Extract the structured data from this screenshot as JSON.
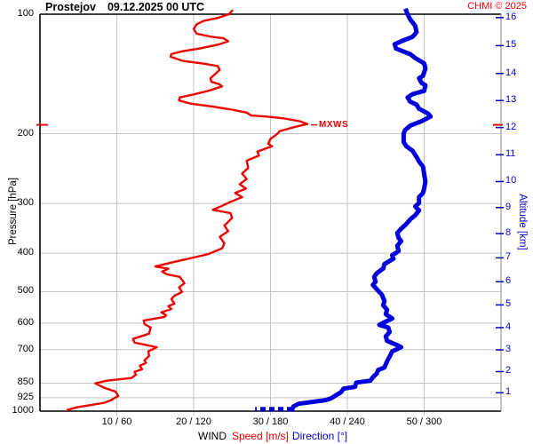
{
  "header": {
    "station": "Prostejov",
    "datetime": "09.12.2025 00 UTC",
    "copyright": "CHMI © 2025"
  },
  "colors": {
    "speed": "#ee0000",
    "direction": "#0000dd",
    "grid": "#c6c6c6",
    "axis": "#000000",
    "right_axis": "#999999",
    "blue_text": "#0000cc",
    "red_text": "#ff0000"
  },
  "chart_data": {
    "type": "line",
    "title": "Prostejov 09.12.2025 00 UTC",
    "ylabel": "Pressure [hPa]",
    "y2label": "Altitude [km]",
    "xlabel_word": "WIND",
    "xlabel_speed": "Speed [m/s]",
    "xlabel_direction": "Direction [°]",
    "y_axis": {
      "scale": "log",
      "range": [
        100,
        1000
      ],
      "ticks": [
        100,
        200,
        300,
        400,
        500,
        600,
        700,
        850,
        925,
        1000
      ]
    },
    "y2_axis": {
      "units": "km",
      "ticks": [
        [
          1,
          899
        ],
        [
          2,
          795
        ],
        [
          3,
          701
        ],
        [
          4,
          616
        ],
        [
          5,
          540
        ],
        [
          6,
          472
        ],
        [
          7,
          411
        ],
        [
          8,
          357
        ],
        [
          9,
          307
        ],
        [
          10,
          264
        ],
        [
          11,
          226
        ],
        [
          12,
          193
        ],
        [
          13,
          165
        ],
        [
          14,
          141
        ],
        [
          15,
          120
        ],
        [
          16,
          102
        ]
      ]
    },
    "x_axis": {
      "speed_range": [
        0,
        60
      ],
      "direction_range": [
        0,
        360
      ],
      "ticks": [
        {
          "label": "10 / 60",
          "speed": 10,
          "direction": 60
        },
        {
          "label": "20 / 120",
          "speed": 20,
          "direction": 120
        },
        {
          "label": "30 / 180",
          "speed": 30,
          "direction": 180
        },
        {
          "label": "40 / 240",
          "speed": 40,
          "direction": 240
        },
        {
          "label": "50 / 300",
          "speed": 50,
          "direction": 300
        }
      ]
    },
    "annotations": {
      "mxws": {
        "label": "MXWS",
        "pressure_hpa": 190,
        "speed_ms": 34.8
      }
    },
    "series": [
      {
        "name": "speed",
        "units": "m/s",
        "axis": "speed",
        "color": "#ee0000",
        "width": 2.4,
        "points": [
          [
            25.0,
            98
          ],
          [
            24.6,
            100
          ],
          [
            23.3,
            102
          ],
          [
            21.3,
            104
          ],
          [
            20.4,
            106
          ],
          [
            20.0,
            109
          ],
          [
            20.4,
            112
          ],
          [
            22.3,
            114
          ],
          [
            23.9,
            115
          ],
          [
            24.5,
            117
          ],
          [
            23.4,
            119
          ],
          [
            20.8,
            122
          ],
          [
            18.5,
            124
          ],
          [
            17.1,
            126
          ],
          [
            17.0,
            128
          ],
          [
            18.5,
            131
          ],
          [
            21.1,
            133
          ],
          [
            23.1,
            135
          ],
          [
            23.4,
            138
          ],
          [
            22.7,
            142
          ],
          [
            22.2,
            145
          ],
          [
            22.3,
            148
          ],
          [
            23.3,
            150
          ],
          [
            23.7,
            152
          ],
          [
            21.9,
            156
          ],
          [
            19.6,
            160
          ],
          [
            18.2,
            162
          ],
          [
            18.1,
            165
          ],
          [
            19.6,
            168
          ],
          [
            22.5,
            171
          ],
          [
            25.0,
            174
          ],
          [
            26.9,
            177
          ],
          [
            27.5,
            180
          ],
          [
            29.4,
            181
          ],
          [
            31.7,
            183
          ],
          [
            33.8,
            186
          ],
          [
            34.8,
            189
          ],
          [
            32.9,
            193
          ],
          [
            31.2,
            197
          ],
          [
            30.8,
            201
          ],
          [
            30.0,
            206
          ],
          [
            29.7,
            212
          ],
          [
            30.2,
            215
          ],
          [
            28.3,
            222
          ],
          [
            28.5,
            227
          ],
          [
            26.9,
            234
          ],
          [
            27.1,
            244
          ],
          [
            26.3,
            252
          ],
          [
            26.9,
            260
          ],
          [
            26.0,
            268
          ],
          [
            26.8,
            275
          ],
          [
            25.4,
            282
          ],
          [
            26.3,
            289
          ],
          [
            24.8,
            297
          ],
          [
            23.7,
            304
          ],
          [
            22.5,
            311
          ],
          [
            24.8,
            317
          ],
          [
            25.0,
            326
          ],
          [
            24.0,
            341
          ],
          [
            24.5,
            352
          ],
          [
            23.4,
            364
          ],
          [
            24.0,
            378
          ],
          [
            23.7,
            389
          ],
          [
            21.9,
            402
          ],
          [
            21.0,
            406
          ],
          [
            17.9,
            419
          ],
          [
            15.0,
            432
          ],
          [
            16.7,
            438
          ],
          [
            15.9,
            445
          ],
          [
            16.5,
            452
          ],
          [
            18.2,
            459
          ],
          [
            18.8,
            476
          ],
          [
            18.1,
            488
          ],
          [
            18.5,
            501
          ],
          [
            17.5,
            512
          ],
          [
            17.1,
            522
          ],
          [
            17.5,
            536
          ],
          [
            16.7,
            544
          ],
          [
            17.1,
            553
          ],
          [
            15.8,
            564
          ],
          [
            16.4,
            573
          ],
          [
            16.2,
            579
          ],
          [
            13.5,
            591
          ],
          [
            13.6,
            603
          ],
          [
            14.4,
            616
          ],
          [
            14.2,
            638
          ],
          [
            12.1,
            658
          ],
          [
            12.3,
            672
          ],
          [
            15.2,
            690
          ],
          [
            14.1,
            707
          ],
          [
            14.2,
            726
          ],
          [
            13.6,
            745
          ],
          [
            13.8,
            756
          ],
          [
            13.0,
            768
          ],
          [
            13.3,
            784
          ],
          [
            12.3,
            796
          ],
          [
            12.5,
            809
          ],
          [
            11.9,
            825
          ],
          [
            8.7,
            838
          ],
          [
            7.2,
            851
          ],
          [
            8.4,
            874
          ],
          [
            9.8,
            892
          ],
          [
            10.2,
            915
          ],
          [
            9.2,
            939
          ],
          [
            8.3,
            953
          ],
          [
            4.8,
            978
          ],
          [
            3.6,
            993
          ]
        ]
      },
      {
        "name": "direction",
        "units": "°",
        "axis": "direction",
        "color": "#0000dd",
        "width": 5,
        "points": [
          [
            286,
            98
          ],
          [
            287,
            100
          ],
          [
            289,
            103
          ],
          [
            293,
            107
          ],
          [
            294,
            111
          ],
          [
            291,
            114
          ],
          [
            282,
            117
          ],
          [
            277,
            119
          ],
          [
            278,
            122
          ],
          [
            286,
            125
          ],
          [
            289,
            126
          ],
          [
            293,
            129
          ],
          [
            300,
            133
          ],
          [
            301,
            137
          ],
          [
            299,
            143
          ],
          [
            296,
            145
          ],
          [
            298,
            149
          ],
          [
            301,
            151
          ],
          [
            300,
            156
          ],
          [
            291,
            159
          ],
          [
            287,
            162
          ],
          [
            289,
            166
          ],
          [
            294,
            169
          ],
          [
            296,
            173
          ],
          [
            303,
            178
          ],
          [
            305,
            181
          ],
          [
            298,
            186
          ],
          [
            289,
            191
          ],
          [
            285,
            196
          ],
          [
            284,
            200
          ],
          [
            284,
            210
          ],
          [
            286,
            215
          ],
          [
            291,
            221
          ],
          [
            294,
            229
          ],
          [
            296,
            235
          ],
          [
            299,
            242
          ],
          [
            300,
            253
          ],
          [
            301,
            264
          ],
          [
            300,
            275
          ],
          [
            299,
            282
          ],
          [
            296,
            289
          ],
          [
            296,
            299
          ],
          [
            293,
            305
          ],
          [
            296,
            312
          ],
          [
            293,
            321
          ],
          [
            289,
            329
          ],
          [
            286,
            338
          ],
          [
            282,
            347
          ],
          [
            279,
            356
          ],
          [
            280,
            366
          ],
          [
            282,
            373
          ],
          [
            279,
            383
          ],
          [
            280,
            395
          ],
          [
            275,
            405
          ],
          [
            276,
            413
          ],
          [
            269,
            426
          ],
          [
            268,
            437
          ],
          [
            263,
            449
          ],
          [
            261,
            459
          ],
          [
            262,
            472
          ],
          [
            260,
            481
          ],
          [
            264,
            497
          ],
          [
            267,
            509
          ],
          [
            269,
            528
          ],
          [
            268,
            541
          ],
          [
            271,
            555
          ],
          [
            270,
            570
          ],
          [
            275,
            584
          ],
          [
            265,
            606
          ],
          [
            272,
            616
          ],
          [
            273,
            632
          ],
          [
            270,
            648
          ],
          [
            271,
            665
          ],
          [
            279,
            682
          ],
          [
            282,
            690
          ],
          [
            275,
            707
          ],
          [
            273,
            729
          ],
          [
            271,
            749
          ],
          [
            269,
            776
          ],
          [
            264,
            788
          ],
          [
            263,
            804
          ],
          [
            260,
            821
          ],
          [
            258,
            838
          ],
          [
            247,
            847
          ],
          [
            246,
            869
          ],
          [
            237,
            878
          ],
          [
            235,
            896
          ],
          [
            227,
            929
          ],
          [
            223,
            938
          ],
          [
            202,
            958
          ],
          [
            198,
            973
          ],
          [
            197,
            988
          ]
        ],
        "dashed_surface_points": [
          [
            197,
            988
          ],
          [
            168,
            988
          ]
        ]
      }
    ]
  }
}
